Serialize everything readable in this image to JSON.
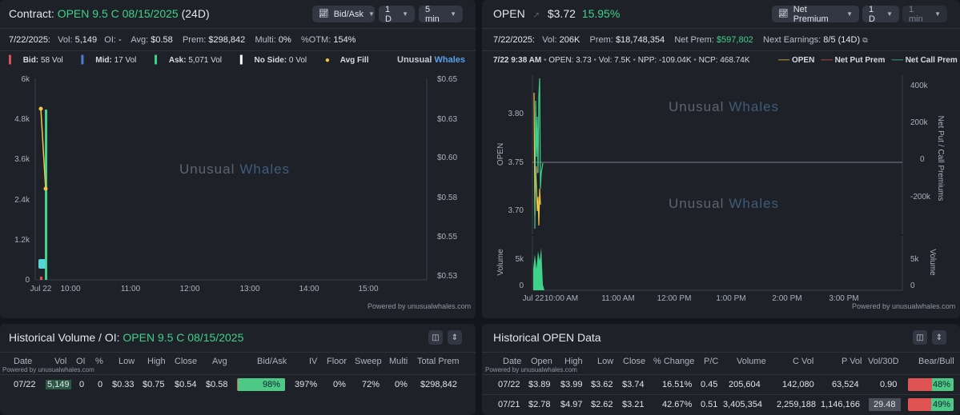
{
  "left_chart": {
    "contract_label": "Contract:",
    "contract_name": "OPEN 9.5 C 08/15/2025",
    "contract_days": "(24D)",
    "dropdowns": [
      "Bid/Ask",
      "1 D",
      "5 min"
    ],
    "stats": {
      "date": "7/22/2025:",
      "vol_label": "Vol:",
      "vol": "5,149",
      "oi_label": "OI:",
      "oi": "-",
      "avg_label": "Avg:",
      "avg": "$0.58",
      "prem_label": "Prem:",
      "prem": "$298,842",
      "multi_label": "Multi:",
      "multi": "0%",
      "otm_label": "%OTM:",
      "otm": "154%"
    },
    "legend": {
      "bid": "Bid:",
      "bid_val": "58 Vol",
      "mid": "Mid:",
      "mid_val": "17 Vol",
      "ask": "Ask:",
      "ask_val": "5,071 Vol",
      "noside": "No Side:",
      "noside_val": "0 Vol",
      "avgfill": "Avg Fill"
    },
    "brand_unusual": "Unusual",
    "brand_whales": "Whales",
    "y_left_ticks": [
      "6k",
      "4.8k",
      "3.6k",
      "2.4k",
      "1.2k",
      "0"
    ],
    "y_right_ticks": [
      "$0.65",
      "$0.63",
      "$0.60",
      "$0.58",
      "$0.55",
      "$0.53"
    ],
    "x_ticks": [
      "Jul 22",
      "10:00",
      "11:00",
      "12:00",
      "13:00",
      "14:00",
      "15:00"
    ],
    "powered": "Powered by unusualwhales.com",
    "colors": {
      "ask": "#3fd28a",
      "bid": "#e05353",
      "mid": "#4a7fd6",
      "avgfill": "#f2c744"
    }
  },
  "right_chart": {
    "ticker": "OPEN",
    "price": "$3.72",
    "change": "15.95%",
    "dropdowns": [
      "Net Premium",
      "1 D",
      "1 min"
    ],
    "stats": {
      "date": "7/22/2025:",
      "vol_label": "Vol:",
      "vol": "206K",
      "prem_label": "Prem:",
      "prem": "$18,748,354",
      "netprem_label": "Net Prem:",
      "netprem": "$597,802",
      "earn_label": "Next Earnings:",
      "earn": "8/5 (14D)"
    },
    "hover": {
      "time": "7/22 9:38 AM",
      "open": "OPEN: 3.73",
      "vol": "Vol: 7.5K",
      "npp": "NPP: -109.04K",
      "ncp": "NCP: 468.74K"
    },
    "legend": [
      "OPEN",
      "Net Put Prem",
      "Net Call Prem"
    ],
    "y_left_label": "OPEN",
    "y_left_ticks": [
      "3.80",
      "3.75",
      "3.70"
    ],
    "y_right_label": "Net Put / Call Premiums",
    "y_right_ticks": [
      "400k",
      "200k",
      "0",
      "-200k"
    ],
    "vol_label": "Volume",
    "vol_ticks": [
      "5k",
      "0"
    ],
    "x_ticks": [
      "Jul 22",
      "10:00 AM",
      "11:00 AM",
      "12:00 PM",
      "1:00 PM",
      "2:00 PM",
      "3:00 PM"
    ],
    "brand_unusual": "Unusual",
    "brand_whales": "Whales",
    "powered": "Powered by unusualwhales.com"
  },
  "hist_vol": {
    "title_prefix": "Historical Volume / OI:",
    "title_contract": "OPEN 9.5 C 08/15/2025",
    "powered": "Powered by unusualwhales.com",
    "headers": [
      "Date",
      "Vol",
      "OI",
      "%",
      "Low",
      "High",
      "Close",
      "Avg",
      "Bid/Ask",
      "IV",
      "Floor",
      "Sweep",
      "Multi",
      "Total Prem"
    ],
    "rows": [
      {
        "date": "07/22",
        "vol": "5,149",
        "oi": "0",
        "pct": "0",
        "low": "$0.33",
        "high": "$0.75",
        "close": "$0.54",
        "avg": "$0.58",
        "bidask": "98%",
        "bidask_frac": 0.98,
        "iv": "397%",
        "floor": "0%",
        "sweep": "72%",
        "multi": "0%",
        "total": "$298,842"
      }
    ]
  },
  "hist_open": {
    "title": "Historical OPEN Data",
    "powered": "Powered by unusualwhales.com",
    "headers": [
      "Date",
      "Open",
      "High",
      "Low",
      "Close",
      "% Change",
      "P/C",
      "Volume",
      "C Vol",
      "P Vol",
      "Vol/30D",
      "Bear/Bull"
    ],
    "rows": [
      {
        "date": "07/22",
        "open": "$3.89",
        "high": "$3.99",
        "low": "$3.62",
        "close": "$3.74",
        "change": "16.51%",
        "pc": "0.45",
        "volume": "205,604",
        "cvol": "142,080",
        "pvol": "63,524",
        "vol30": "0.90",
        "bull": "48%",
        "bull_frac": 0.48
      },
      {
        "date": "07/21",
        "open": "$2.78",
        "high": "$4.97",
        "low": "$2.62",
        "close": "$3.21",
        "change": "42.67%",
        "pc": "0.51",
        "volume": "3,405,354",
        "cvol": "2,259,188",
        "pvol": "1,146,166",
        "vol30": "29.48",
        "bull": "49%",
        "bull_frac": 0.49
      }
    ]
  }
}
